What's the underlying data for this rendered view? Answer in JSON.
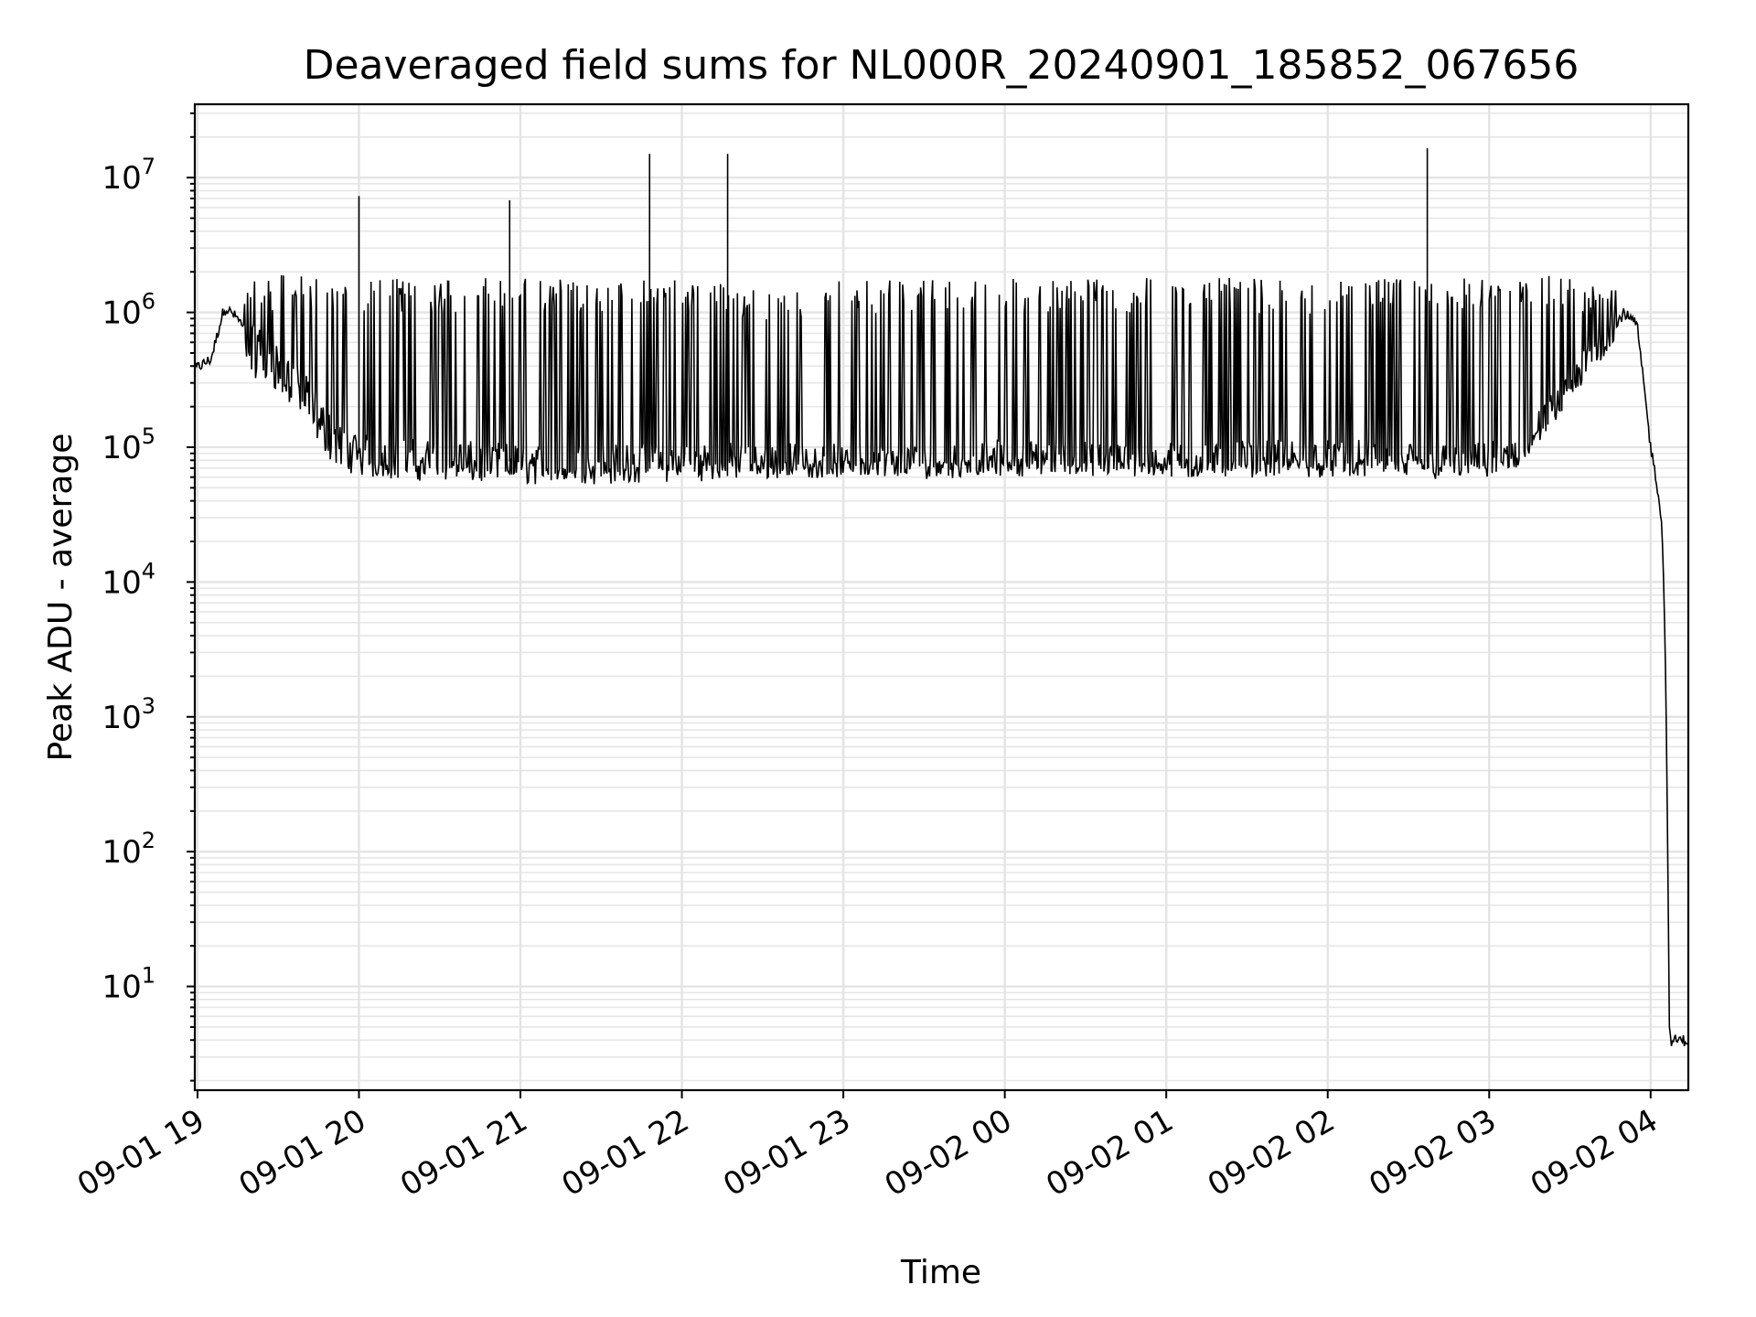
{
  "chart_data": {
    "type": "line",
    "title": "Deaveraged field sums for NL000R_20240901_185852_067656",
    "xlabel": "Time",
    "ylabel": "Peak ADU - average",
    "yscale": "log",
    "ylim": [
      1.7,
      35000000
    ],
    "xlim": [
      "09-01 18:59",
      "09-02 04:14"
    ],
    "grid": true,
    "x_ticks": [
      "09-01 19",
      "09-01 20",
      "09-01 21",
      "09-01 22",
      "09-01 23",
      "09-02 00",
      "09-02 01",
      "09-02 02",
      "09-02 03",
      "09-02 04"
    ],
    "y_ticks": [
      {
        "base": "10",
        "exp": "1",
        "value": 10
      },
      {
        "base": "10",
        "exp": "2",
        "value": 100
      },
      {
        "base": "10",
        "exp": "3",
        "value": 1000
      },
      {
        "base": "10",
        "exp": "4",
        "value": 10000
      },
      {
        "base": "10",
        "exp": "5",
        "value": 100000
      },
      {
        "base": "10",
        "exp": "6",
        "value": 1000000
      },
      {
        "base": "10",
        "exp": "7",
        "value": 10000000
      }
    ],
    "series": [
      {
        "color": "#000000",
        "x": [
          "09-01 18:59",
          "09-01 19:05",
          "09-01 19:10",
          "09-01 19:15",
          "09-01 19:20",
          "09-01 19:30",
          "09-01 19:40",
          "09-01 19:50",
          "09-01 20:00",
          "09-01 20:30",
          "09-01 21:00",
          "09-01 21:30",
          "09-01 22:00",
          "09-01 22:30",
          "09-01 23:00",
          "09-01 23:30",
          "09-02 00:00",
          "09-02 00:30",
          "09-02 01:00",
          "09-02 01:30",
          "09-02 02:00",
          "09-02 02:30",
          "09-02 02:50",
          "09-02 03:10",
          "09-02 03:25",
          "09-02 03:40",
          "09-02 03:50",
          "09-02 03:55",
          "09-02 04:00",
          "09-02 04:02",
          "09-02 04:04",
          "09-02 04:05",
          "09-02 04:06",
          "09-02 04:07",
          "09-02 04:14"
        ],
        "values": [
          380000,
          450000,
          1100000,
          900000,
          600000,
          450000,
          250000,
          120000,
          90000,
          80000,
          78000,
          75000,
          80000,
          78000,
          76000,
          75000,
          82000,
          80000,
          78000,
          80000,
          82000,
          80000,
          75000,
          85000,
          200000,
          500000,
          1000000,
          800000,
          100000,
          60000,
          30000,
          8000,
          600,
          4,
          4
        ],
        "baseline": [
          380000,
          450000,
          1000000,
          800000,
          400000,
          300000,
          180000,
          90000,
          70000,
          65000,
          62000,
          62000,
          65000,
          68000,
          70000,
          68000,
          72000,
          70000,
          68000,
          70000,
          70000,
          68000,
          65000,
          72000,
          180000,
          450000,
          950000,
          750000,
          90000,
          55000,
          28000,
          7000,
          500,
          4,
          4
        ],
        "peak": [
          450000,
          600000,
          1200000,
          1000000,
          1800000,
          1900000,
          1900000,
          1800000,
          1800000,
          1800000,
          1800000,
          1800000,
          1800000,
          1500000,
          1800000,
          1800000,
          1800000,
          1800000,
          1800000,
          1800000,
          1700000,
          1800000,
          1800000,
          1900000,
          1900000,
          1600000,
          1900000,
          1200000,
          120000,
          70000,
          40000,
          10000,
          700,
          4.5,
          4.5
        ],
        "spikes": [
          {
            "x": "09-01 20:00",
            "value": 7300000
          },
          {
            "x": "09-01 20:56",
            "value": 6800000
          },
          {
            "x": "09-01 21:48",
            "value": 15000000
          },
          {
            "x": "09-01 22:17",
            "value": 15000000
          },
          {
            "x": "09-02 02:37",
            "value": 16500000
          }
        ]
      }
    ]
  }
}
